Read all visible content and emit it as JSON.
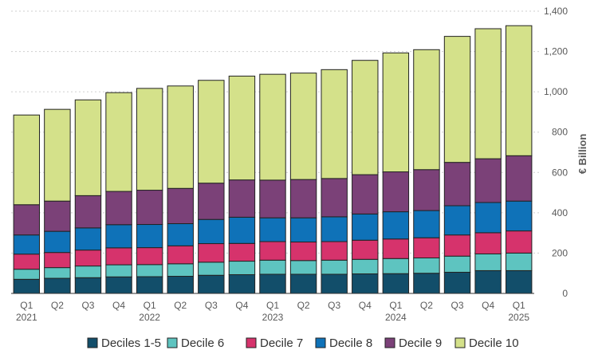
{
  "chart_data": {
    "type": "stacked-bar",
    "title": "",
    "xlabel": "",
    "ylabel": "€ Billion",
    "ylim": [
      0,
      1400
    ],
    "yticks": [
      "0",
      "200",
      "400",
      "600",
      "800",
      "1,000",
      "1,200",
      "1,400"
    ],
    "ytick_values": [
      0,
      200,
      400,
      600,
      800,
      1000,
      1200,
      1400
    ],
    "y_axis_side": "right",
    "grid": true,
    "legend_position": "bottom",
    "categories": [
      {
        "quarter": "Q1",
        "year": "2021"
      },
      {
        "quarter": "Q2",
        "year": ""
      },
      {
        "quarter": "Q3",
        "year": ""
      },
      {
        "quarter": "Q4",
        "year": ""
      },
      {
        "quarter": "Q1",
        "year": "2022"
      },
      {
        "quarter": "Q2",
        "year": ""
      },
      {
        "quarter": "Q3",
        "year": ""
      },
      {
        "quarter": "Q4",
        "year": ""
      },
      {
        "quarter": "Q1",
        "year": "2023"
      },
      {
        "quarter": "Q2",
        "year": ""
      },
      {
        "quarter": "Q3",
        "year": ""
      },
      {
        "quarter": "Q4",
        "year": ""
      },
      {
        "quarter": "Q1",
        "year": "2024"
      },
      {
        "quarter": "Q2",
        "year": ""
      },
      {
        "quarter": "Q3",
        "year": ""
      },
      {
        "quarter": "Q4",
        "year": ""
      },
      {
        "quarter": "Q1",
        "year": "2025"
      }
    ],
    "series": [
      {
        "name": "Deciles 1-5",
        "color": "#124e6a",
        "values": [
          70,
          75,
          78,
          82,
          83,
          85,
          90,
          93,
          95,
          95,
          95,
          97,
          98,
          100,
          105,
          113,
          113
        ]
      },
      {
        "name": "Decile 6",
        "color": "#5ec4c0",
        "values": [
          50,
          53,
          58,
          60,
          60,
          62,
          65,
          67,
          70,
          68,
          70,
          72,
          75,
          76,
          80,
          83,
          87
        ]
      },
      {
        "name": "Decile 7",
        "color": "#d6336c",
        "values": [
          75,
          75,
          79,
          84,
          84,
          89,
          92,
          88,
          92,
          92,
          92,
          95,
          97,
          100,
          105,
          105,
          110
        ]
      },
      {
        "name": "Decile 8",
        "color": "#0f72b8",
        "values": [
          95,
          105,
          110,
          115,
          115,
          110,
          120,
          130,
          118,
          120,
          123,
          130,
          135,
          135,
          145,
          150,
          148
        ]
      },
      {
        "name": "Decile 9",
        "color": "#7b4178",
        "values": [
          150,
          150,
          160,
          165,
          170,
          175,
          180,
          185,
          187,
          190,
          190,
          195,
          198,
          203,
          215,
          217,
          225
        ]
      },
      {
        "name": "Decile 10",
        "color": "#d4e18a",
        "values": [
          445,
          455,
          475,
          490,
          505,
          508,
          510,
          515,
          525,
          528,
          540,
          567,
          590,
          595,
          625,
          645,
          645
        ]
      }
    ]
  }
}
